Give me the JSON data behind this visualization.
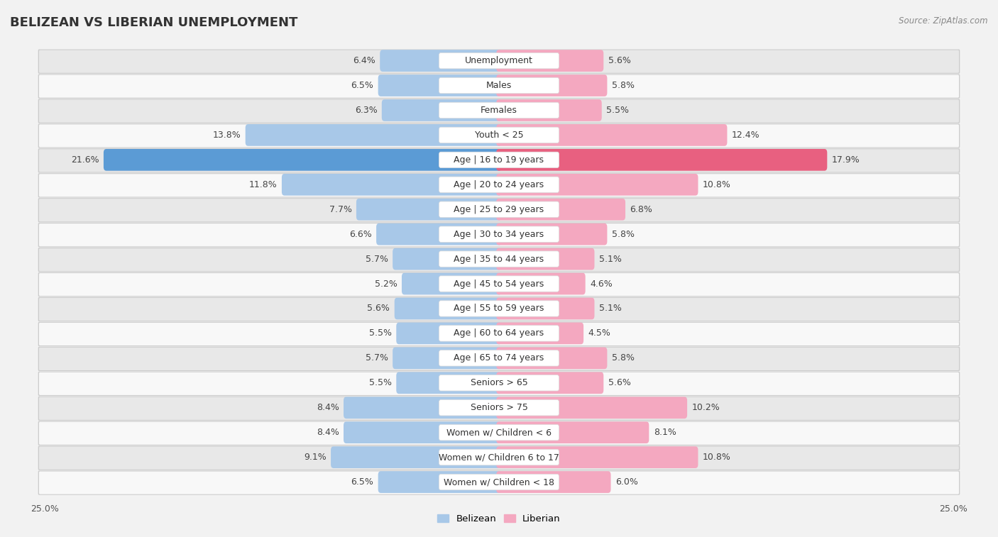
{
  "title": "BELIZEAN VS LIBERIAN UNEMPLOYMENT",
  "source": "Source: ZipAtlas.com",
  "categories": [
    "Unemployment",
    "Males",
    "Females",
    "Youth < 25",
    "Age | 16 to 19 years",
    "Age | 20 to 24 years",
    "Age | 25 to 29 years",
    "Age | 30 to 34 years",
    "Age | 35 to 44 years",
    "Age | 45 to 54 years",
    "Age | 55 to 59 years",
    "Age | 60 to 64 years",
    "Age | 65 to 74 years",
    "Seniors > 65",
    "Seniors > 75",
    "Women w/ Children < 6",
    "Women w/ Children 6 to 17",
    "Women w/ Children < 18"
  ],
  "belizean": [
    6.4,
    6.5,
    6.3,
    13.8,
    21.6,
    11.8,
    7.7,
    6.6,
    5.7,
    5.2,
    5.6,
    5.5,
    5.7,
    5.5,
    8.4,
    8.4,
    9.1,
    6.5
  ],
  "liberian": [
    5.6,
    5.8,
    5.5,
    12.4,
    17.9,
    10.8,
    6.8,
    5.8,
    5.1,
    4.6,
    5.1,
    4.5,
    5.8,
    5.6,
    10.2,
    8.1,
    10.8,
    6.0
  ],
  "belizean_normal_color": "#a8c8e8",
  "belizean_highlight_color": "#5b9bd5",
  "liberian_normal_color": "#f4a8c0",
  "liberian_highlight_color": "#e86080",
  "background_color": "#f2f2f2",
  "row_bg_color": "#e8e8e8",
  "row_alt_bg_color": "#f8f8f8",
  "shadow_color": "#cccccc",
  "xlim": 25.0,
  "bar_height": 0.58,
  "title_fontsize": 13,
  "label_fontsize": 9,
  "source_fontsize": 8.5,
  "legend_belizean": "Belizean",
  "legend_liberian": "Liberian"
}
